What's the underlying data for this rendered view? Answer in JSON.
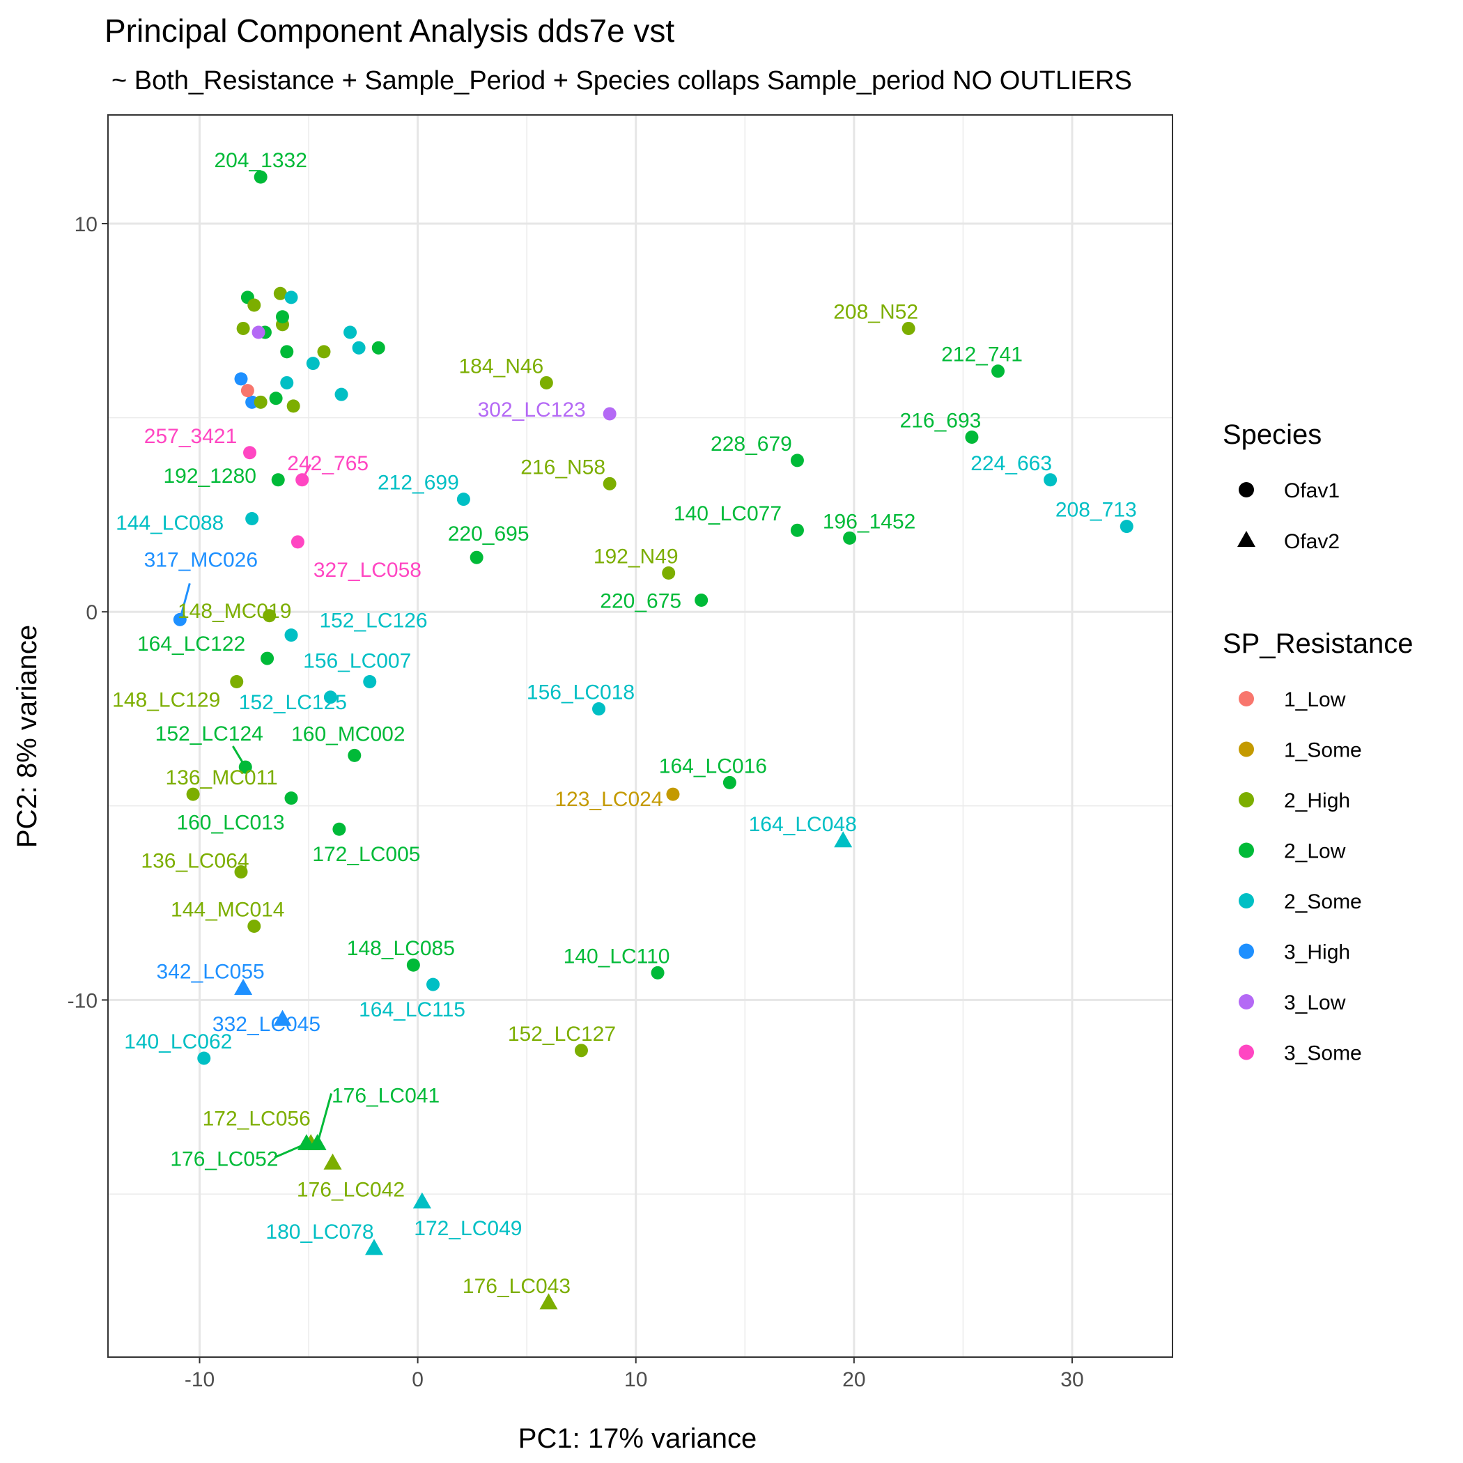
{
  "chart_data": {
    "type": "scatter",
    "title": "Principal Component Analysis dds7e vst",
    "subtitle": "~ Both_Resistance + Sample_Period + Species collaps Sample_period NO OUTLIERS",
    "xlabel": "PC1: 17% variance",
    "ylabel": "PC2: 8% variance",
    "xlim": [
      -14.2,
      34.6
    ],
    "ylim": [
      -19.2,
      12.8
    ],
    "x_ticks": [
      -10,
      0,
      10,
      20,
      30
    ],
    "y_ticks": [
      -10,
      0,
      10
    ],
    "x_tick_labels": [
      "-10",
      "0",
      "10",
      "20",
      "30"
    ],
    "y_tick_labels": [
      "-10",
      "0",
      "10"
    ],
    "grid": true,
    "legend_position": "right",
    "legends": [
      {
        "title": "Species",
        "entries": [
          {
            "label": "Ofav1",
            "shape": "circle"
          },
          {
            "label": "Ofav2",
            "shape": "triangle"
          }
        ]
      },
      {
        "title": "SP_Resistance",
        "entries": [
          {
            "label": "1_Low",
            "color": "#F8766D"
          },
          {
            "label": "1_Some",
            "color": "#C49A00"
          },
          {
            "label": "2_High",
            "color": "#7CAE00"
          },
          {
            "label": "2_Low",
            "color": "#00BA38"
          },
          {
            "label": "2_Some",
            "color": "#00BFC4"
          },
          {
            "label": "3_High",
            "color": "#1E90FF"
          },
          {
            "label": "3_Low",
            "color": "#B469F5"
          },
          {
            "label": "3_Some",
            "color": "#FF46C2"
          }
        ]
      }
    ],
    "points": [
      {
        "x": -7.2,
        "y": 11.2,
        "group": "2_Low",
        "shape": "circle",
        "label": "204_1332"
      },
      {
        "x": 22.5,
        "y": 7.3,
        "group": "2_High",
        "shape": "circle",
        "label": "208_N52"
      },
      {
        "x": 26.6,
        "y": 6.2,
        "group": "2_Low",
        "shape": "circle",
        "label": "212_741"
      },
      {
        "x": 5.9,
        "y": 5.9,
        "group": "2_High",
        "shape": "circle",
        "label": "184_N46"
      },
      {
        "x": 8.8,
        "y": 5.1,
        "group": "3_Low",
        "shape": "circle",
        "label": "302_LC123"
      },
      {
        "x": 25.4,
        "y": 4.5,
        "group": "2_Low",
        "shape": "circle",
        "label": "216_693"
      },
      {
        "x": 17.4,
        "y": 3.9,
        "group": "2_Low",
        "shape": "circle",
        "label": "228_679"
      },
      {
        "x": 29.0,
        "y": 3.4,
        "group": "2_Some",
        "shape": "circle",
        "label": "224_663"
      },
      {
        "x": -7.7,
        "y": 4.1,
        "group": "3_Some",
        "shape": "circle",
        "label": "257_3421"
      },
      {
        "x": -5.3,
        "y": 3.4,
        "group": "3_Some",
        "shape": "circle",
        "label": "242_765"
      },
      {
        "x": 8.8,
        "y": 3.3,
        "group": "2_High",
        "shape": "circle",
        "label": "216_N58"
      },
      {
        "x": -6.4,
        "y": 3.4,
        "group": "2_Low",
        "shape": "circle",
        "label": "192_1280"
      },
      {
        "x": 2.1,
        "y": 2.9,
        "group": "2_Some",
        "shape": "circle",
        "label": "212_699"
      },
      {
        "x": 32.5,
        "y": 2.2,
        "group": "2_Some",
        "shape": "circle",
        "label": "208_713"
      },
      {
        "x": -7.6,
        "y": 2.4,
        "group": "2_Some",
        "shape": "circle",
        "label": "144_LC088"
      },
      {
        "x": 17.4,
        "y": 2.1,
        "group": "2_Low",
        "shape": "circle",
        "label": "140_LC077"
      },
      {
        "x": 19.8,
        "y": 1.9,
        "group": "2_Low",
        "shape": "circle",
        "label": "196_1452"
      },
      {
        "x": -5.5,
        "y": 1.8,
        "group": "3_Some",
        "shape": "circle",
        "label": "327_LC058"
      },
      {
        "x": 2.7,
        "y": 1.4,
        "group": "2_Low",
        "shape": "circle",
        "label": "220_695"
      },
      {
        "x": 11.5,
        "y": 1.0,
        "group": "2_High",
        "shape": "circle",
        "label": "192_N49"
      },
      {
        "x": 13.0,
        "y": 0.3,
        "group": "2_Low",
        "shape": "circle",
        "label": "220_675"
      },
      {
        "x": -10.9,
        "y": -0.2,
        "group": "3_High",
        "shape": "circle",
        "label": "317_MC026"
      },
      {
        "x": -6.8,
        "y": -0.1,
        "group": "2_High",
        "shape": "circle",
        "label": "148_MC019"
      },
      {
        "x": -5.8,
        "y": -0.6,
        "group": "2_Some",
        "shape": "circle",
        "label": "152_LC126"
      },
      {
        "x": -6.9,
        "y": -1.2,
        "group": "2_Low",
        "shape": "circle",
        "label": "164_LC122"
      },
      {
        "x": -2.2,
        "y": -1.8,
        "group": "2_Some",
        "shape": "circle",
        "label": "156_LC007"
      },
      {
        "x": -8.3,
        "y": -1.8,
        "group": "2_High",
        "shape": "circle",
        "label": "148_LC129"
      },
      {
        "x": -4.0,
        "y": -2.2,
        "group": "2_Some",
        "shape": "circle",
        "label": "152_LC125"
      },
      {
        "x": 8.3,
        "y": -2.5,
        "group": "2_Some",
        "shape": "circle",
        "label": "156_LC018"
      },
      {
        "x": -7.9,
        "y": -4.0,
        "group": "2_Low",
        "shape": "circle",
        "label": "152_LC124"
      },
      {
        "x": -2.9,
        "y": -3.7,
        "group": "2_Low",
        "shape": "circle",
        "label": "160_MC002"
      },
      {
        "x": 14.3,
        "y": -4.4,
        "group": "2_Low",
        "shape": "circle",
        "label": "164_LC016"
      },
      {
        "x": -10.3,
        "y": -4.7,
        "group": "2_High",
        "shape": "circle",
        "label": "136_MC011"
      },
      {
        "x": -5.8,
        "y": -4.8,
        "group": "2_Low",
        "shape": "circle",
        "label": "160_LC013"
      },
      {
        "x": 11.7,
        "y": -4.7,
        "group": "1_Some",
        "shape": "circle",
        "label": "123_LC024"
      },
      {
        "x": 19.5,
        "y": -5.9,
        "group": "2_Some",
        "shape": "triangle",
        "label": "164_LC048"
      },
      {
        "x": -3.6,
        "y": -5.6,
        "group": "2_Low",
        "shape": "circle",
        "label": "172_LC005"
      },
      {
        "x": -8.1,
        "y": -6.7,
        "group": "2_High",
        "shape": "circle",
        "label": "136_LC064"
      },
      {
        "x": -7.5,
        "y": -8.1,
        "group": "2_High",
        "shape": "circle",
        "label": "144_MC014"
      },
      {
        "x": -0.2,
        "y": -9.1,
        "group": "2_Low",
        "shape": "circle",
        "label": "148_LC085"
      },
      {
        "x": 11.0,
        "y": -9.3,
        "group": "2_Low",
        "shape": "circle",
        "label": "140_LC110"
      },
      {
        "x": -8.0,
        "y": -9.7,
        "group": "3_High",
        "shape": "triangle",
        "label": "342_LC055"
      },
      {
        "x": 0.7,
        "y": -9.6,
        "group": "2_Some",
        "shape": "circle",
        "label": "164_LC115"
      },
      {
        "x": -6.2,
        "y": -10.5,
        "group": "3_High",
        "shape": "triangle",
        "label": "332_LC045"
      },
      {
        "x": -9.8,
        "y": -11.5,
        "group": "2_Some",
        "shape": "circle",
        "label": "140_LC062"
      },
      {
        "x": 7.5,
        "y": -11.3,
        "group": "2_High",
        "shape": "circle",
        "label": "152_LC127"
      },
      {
        "x": -4.9,
        "y": -13.7,
        "group": "2_High",
        "shape": "triangle",
        "label": "172_LC056"
      },
      {
        "x": -4.6,
        "y": -13.7,
        "group": "2_Low",
        "shape": "triangle",
        "label": "176_LC041"
      },
      {
        "x": -5.1,
        "y": -13.7,
        "group": "2_Low",
        "shape": "triangle",
        "label": "176_LC052"
      },
      {
        "x": -3.9,
        "y": -14.2,
        "group": "2_High",
        "shape": "triangle",
        "label": "176_LC042"
      },
      {
        "x": 0.2,
        "y": -15.2,
        "group": "2_Some",
        "shape": "triangle",
        "label": "172_LC049"
      },
      {
        "x": -2.0,
        "y": -16.4,
        "group": "2_Some",
        "shape": "triangle",
        "label": "180_LC078"
      },
      {
        "x": 6.0,
        "y": -17.8,
        "group": "2_High",
        "shape": "triangle",
        "label": "176_LC043"
      },
      {
        "x": -8.1,
        "y": 6.0,
        "group": "3_High",
        "shape": "circle"
      },
      {
        "x": -7.6,
        "y": 5.4,
        "group": "3_High",
        "shape": "circle"
      },
      {
        "x": -7.8,
        "y": 5.7,
        "group": "1_Low",
        "shape": "circle"
      },
      {
        "x": -7.8,
        "y": 8.1,
        "group": "2_Low",
        "shape": "circle"
      },
      {
        "x": -7.5,
        "y": 7.9,
        "group": "2_High",
        "shape": "circle"
      },
      {
        "x": -6.3,
        "y": 8.2,
        "group": "2_High",
        "shape": "circle"
      },
      {
        "x": -5.8,
        "y": 8.1,
        "group": "2_Some",
        "shape": "circle"
      },
      {
        "x": -8.0,
        "y": 7.3,
        "group": "2_High",
        "shape": "circle"
      },
      {
        "x": -7.0,
        "y": 7.2,
        "group": "2_Low",
        "shape": "circle"
      },
      {
        "x": -7.3,
        "y": 7.2,
        "group": "3_Low",
        "shape": "circle"
      },
      {
        "x": -6.2,
        "y": 7.4,
        "group": "2_High",
        "shape": "circle"
      },
      {
        "x": -6.2,
        "y": 7.6,
        "group": "2_Low",
        "shape": "circle"
      },
      {
        "x": -6.0,
        "y": 6.7,
        "group": "2_Low",
        "shape": "circle"
      },
      {
        "x": -4.3,
        "y": 6.7,
        "group": "2_High",
        "shape": "circle"
      },
      {
        "x": -4.8,
        "y": 6.4,
        "group": "2_Some",
        "shape": "circle"
      },
      {
        "x": -3.1,
        "y": 7.2,
        "group": "2_Some",
        "shape": "circle"
      },
      {
        "x": -2.7,
        "y": 6.8,
        "group": "2_Some",
        "shape": "circle"
      },
      {
        "x": -1.8,
        "y": 6.8,
        "group": "2_Low",
        "shape": "circle"
      },
      {
        "x": -6.0,
        "y": 5.9,
        "group": "2_Some",
        "shape": "circle"
      },
      {
        "x": -3.5,
        "y": 5.6,
        "group": "2_Some",
        "shape": "circle"
      },
      {
        "x": -6.5,
        "y": 5.5,
        "group": "2_Low",
        "shape": "circle"
      },
      {
        "x": -7.2,
        "y": 5.4,
        "group": "2_High",
        "shape": "circle"
      },
      {
        "x": -5.7,
        "y": 5.3,
        "group": "2_High",
        "shape": "circle"
      }
    ]
  }
}
